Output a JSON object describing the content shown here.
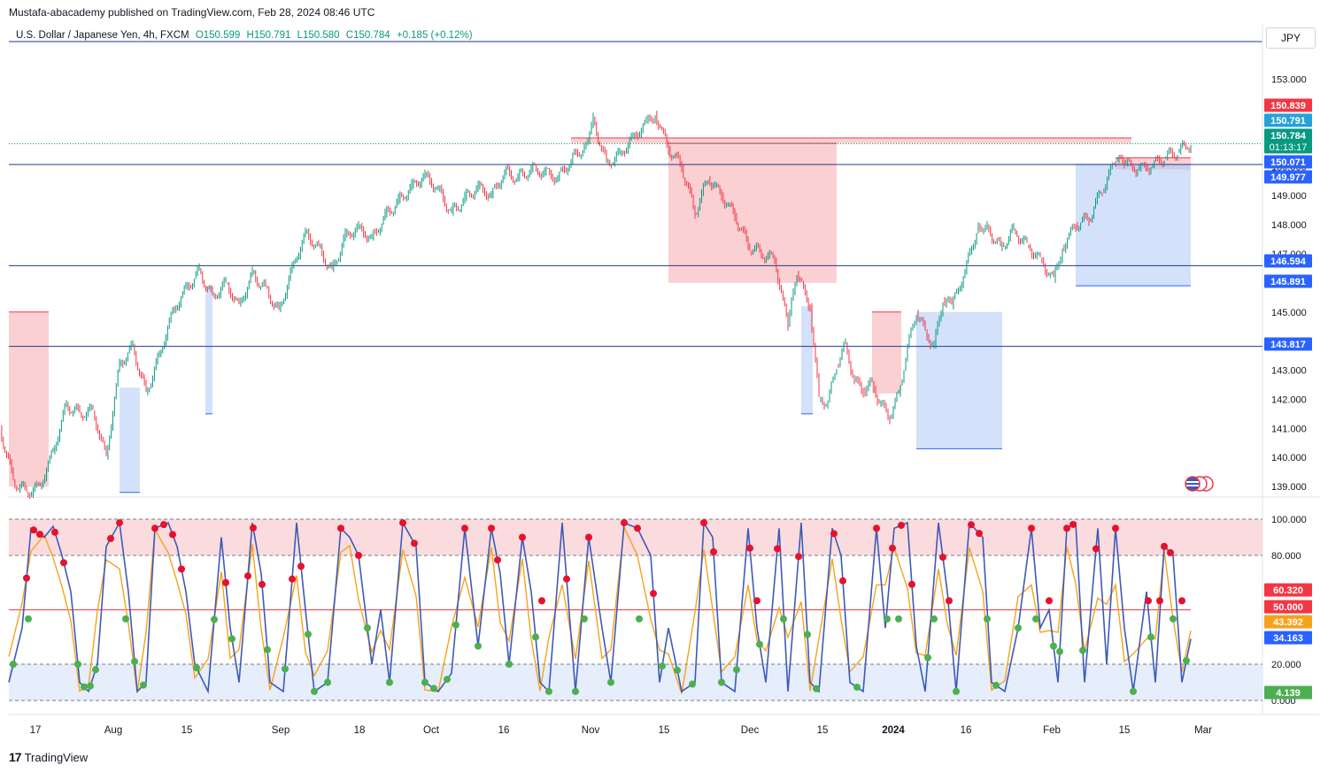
{
  "header": {
    "published_by": "Mustafa-abacademy published on TradingView.com, Feb 28, 2024 08:46 UTC",
    "symbol": "U.S. Dollar / Japanese Yen, 4h, FXCM",
    "open": "O150.599",
    "high": "H150.791",
    "low": "L150.580",
    "close": "C150.784",
    "change": "+0.185 (+0.12%)",
    "currency": "JPY"
  },
  "footer": {
    "logo_mark": "17",
    "logo_text": "TradingView"
  },
  "colors": {
    "supply_zone": "#f7a9ae",
    "demand_zone": "#aec8f5",
    "candle_up": "#089981",
    "candle_down": "#f23645",
    "stoch_k": "#3d5ab8",
    "stoch_d": "#f7a21b",
    "overbought_fill": "#fadcde",
    "oversold_fill": "#e6edfb"
  },
  "chart_data": [
    {
      "type": "line",
      "description_of_series": "USDJPY 4h close path (approximate)",
      "price_axis": [
        "153.000",
        "152.000",
        "151.000",
        "150.000",
        "149.000",
        "148.000",
        "147.000",
        "146.000",
        "145.000",
        "144.000",
        "143.000",
        "142.000",
        "141.000",
        "140.000",
        "139.000"
      ],
      "ylim": [
        138.7,
        153.9
      ],
      "time_axis": [
        "17",
        "Aug",
        "15",
        "Sep",
        "18",
        "Oct",
        "16",
        "Nov",
        "15",
        "Dec",
        "15",
        "2024",
        "16",
        "Feb",
        "15",
        "Mar"
      ],
      "price_points": [
        [
          0,
          141.0
        ],
        [
          15,
          139.2
        ],
        [
          30,
          138.8
        ],
        [
          45,
          139.0
        ],
        [
          60,
          140.2
        ],
        [
          75,
          141.8
        ],
        [
          90,
          141.5
        ],
        [
          105,
          141.6
        ],
        [
          120,
          140.0
        ],
        [
          135,
          143.2
        ],
        [
          150,
          143.8
        ],
        [
          165,
          142.2
        ],
        [
          180,
          143.5
        ],
        [
          195,
          145.0
        ],
        [
          210,
          145.8
        ],
        [
          225,
          146.4
        ],
        [
          240,
          145.5
        ],
        [
          255,
          146.0
        ],
        [
          270,
          145.2
        ],
        [
          285,
          146.3
        ],
        [
          300,
          145.8
        ],
        [
          315,
          145.0
        ],
        [
          330,
          146.5
        ],
        [
          345,
          147.7
        ],
        [
          360,
          147.2
        ],
        [
          375,
          146.4
        ],
        [
          390,
          147.6
        ],
        [
          405,
          147.9
        ],
        [
          420,
          147.5
        ],
        [
          435,
          148.3
        ],
        [
          450,
          148.8
        ],
        [
          465,
          149.3
        ],
        [
          480,
          149.7
        ],
        [
          495,
          149.2
        ],
        [
          510,
          148.4
        ],
        [
          525,
          148.9
        ],
        [
          540,
          149.3
        ],
        [
          555,
          149.0
        ],
        [
          570,
          149.8
        ],
        [
          585,
          149.6
        ],
        [
          600,
          149.9
        ],
        [
          615,
          149.8
        ],
        [
          630,
          149.6
        ],
        [
          645,
          150.2
        ],
        [
          660,
          150.7
        ],
        [
          670,
          151.6
        ],
        [
          685,
          150.1
        ],
        [
          700,
          150.4
        ],
        [
          715,
          151.0
        ],
        [
          730,
          151.5
        ],
        [
          740,
          151.8
        ],
        [
          755,
          150.6
        ],
        [
          770,
          150.0
        ],
        [
          785,
          148.4
        ],
        [
          800,
          149.6
        ],
        [
          815,
          149.0
        ],
        [
          830,
          148.3
        ],
        [
          845,
          147.3
        ],
        [
          860,
          147.0
        ],
        [
          875,
          146.8
        ],
        [
          890,
          144.5
        ],
        [
          900,
          146.3
        ],
        [
          915,
          145.2
        ],
        [
          925,
          142.0
        ],
        [
          935,
          141.9
        ],
        [
          945,
          143.2
        ],
        [
          955,
          143.9
        ],
        [
          965,
          142.6
        ],
        [
          975,
          142.3
        ],
        [
          985,
          142.5
        ],
        [
          995,
          141.8
        ],
        [
          1005,
          141.4
        ],
        [
          1015,
          142.2
        ],
        [
          1025,
          143.8
        ],
        [
          1035,
          145.0
        ],
        [
          1045,
          144.3
        ],
        [
          1055,
          143.8
        ],
        [
          1065,
          145.4
        ],
        [
          1075,
          145.2
        ],
        [
          1090,
          146.4
        ],
        [
          1105,
          148.0
        ],
        [
          1115,
          147.9
        ],
        [
          1130,
          147.2
        ],
        [
          1145,
          147.8
        ],
        [
          1160,
          147.3
        ],
        [
          1175,
          146.8
        ],
        [
          1190,
          146.1
        ],
        [
          1200,
          147.2
        ],
        [
          1215,
          148.0
        ],
        [
          1230,
          148.2
        ],
        [
          1245,
          149.2
        ],
        [
          1260,
          150.2
        ],
        [
          1270,
          150.1
        ],
        [
          1285,
          149.9
        ],
        [
          1300,
          150.0
        ],
        [
          1315,
          150.3
        ],
        [
          1330,
          150.5
        ],
        [
          1345,
          150.784
        ]
      ],
      "supply_zones": [
        {
          "from_x": 10,
          "to_x": 55,
          "top": 145.0,
          "bottom": 139.0
        },
        {
          "from_x": 645,
          "to_x": 1278,
          "top": 150.98,
          "bottom": 150.8
        },
        {
          "from_x": 755,
          "to_x": 945,
          "top": 150.8,
          "bottom": 146.0
        },
        {
          "from_x": 985,
          "to_x": 1018,
          "top": 145.0,
          "bottom": 142.2
        },
        {
          "from_x": 1260,
          "to_x": 1345,
          "top": 150.3,
          "bottom": 149.9
        }
      ],
      "demand_zones": [
        {
          "from_x": 135,
          "to_x": 158,
          "top": 142.4,
          "bottom": 138.8
        },
        {
          "from_x": 232,
          "to_x": 240,
          "top": 145.9,
          "bottom": 141.5
        },
        {
          "from_x": 1035,
          "to_x": 1132,
          "top": 145.0,
          "bottom": 140.3
        },
        {
          "from_x": 1215,
          "to_x": 1345,
          "top": 150.1,
          "bottom": 145.9
        },
        {
          "from_x": 905,
          "to_x": 918,
          "top": 145.2,
          "bottom": 141.5
        }
      ],
      "horizontal_levels": [
        {
          "price": 150.071,
          "label": "150.071",
          "color": "#2962ff"
        },
        {
          "price": 146.594,
          "label": "146.594",
          "color": "#2962ff"
        },
        {
          "price": 143.817,
          "label": "143.817",
          "color": "#2962ff"
        }
      ],
      "price_tags": [
        {
          "price": 150.839,
          "label": "150.839",
          "bg": "#f23645",
          "color": "#ffffff"
        },
        {
          "price": 150.791,
          "label": "150.791",
          "bg": "#26a2d8",
          "color": "#ffffff"
        },
        {
          "price": 150.784,
          "label": "150.784",
          "sub": "01:13:17",
          "bg": "#089981",
          "color": "#ffffff"
        },
        {
          "price": 150.071,
          "label": "150.071",
          "bg": "#2962ff",
          "color": "#ffffff"
        },
        {
          "price": 149.977,
          "label": "149.977",
          "bg": "#2962ff",
          "color": "#ffffff"
        },
        {
          "price": 146.594,
          "label": "146.594",
          "bg": "#2962ff",
          "color": "#ffffff"
        },
        {
          "price": 145.891,
          "label": "145.891",
          "bg": "#2962ff",
          "color": "#ffffff"
        },
        {
          "price": 143.817,
          "label": "143.817",
          "bg": "#2962ff",
          "color": "#ffffff"
        }
      ]
    },
    {
      "type": "line",
      "description_of_series": "Stochastic oscillator %K / %D",
      "axis_labels": [
        "100.000",
        "80.000",
        "20.000",
        "0.000"
      ],
      "ylim": [
        0,
        100
      ],
      "levels": {
        "overbought": 80,
        "mid": 50,
        "oversold": 20
      },
      "value_tags": [
        {
          "value": 60.32,
          "label": "60.320",
          "bg": "#f23645"
        },
        {
          "value": 50.0,
          "label": "50.000",
          "bg": "#f23645"
        },
        {
          "value": 43.392,
          "label": "43.392",
          "bg": "#f7a21b"
        },
        {
          "value": 34.163,
          "label": "34.163",
          "bg": "#2962ff"
        },
        {
          "value": 4.139,
          "label": "4.139",
          "bg": "#4caf50"
        }
      ],
      "k_points": [
        [
          10,
          10
        ],
        [
          25,
          40
        ],
        [
          35,
          95
        ],
        [
          50,
          90
        ],
        [
          60,
          96
        ],
        [
          70,
          80
        ],
        [
          80,
          60
        ],
        [
          90,
          10
        ],
        [
          100,
          5
        ],
        [
          110,
          20
        ],
        [
          120,
          85
        ],
        [
          135,
          98
        ],
        [
          145,
          60
        ],
        [
          155,
          5
        ],
        [
          165,
          10
        ],
        [
          175,
          95
        ],
        [
          190,
          98
        ],
        [
          200,
          85
        ],
        [
          210,
          60
        ],
        [
          220,
          20
        ],
        [
          235,
          5
        ],
        [
          250,
          90
        ],
        [
          260,
          40
        ],
        [
          270,
          10
        ],
        [
          285,
          98
        ],
        [
          295,
          70
        ],
        [
          305,
          10
        ],
        [
          320,
          5
        ],
        [
          335,
          98
        ],
        [
          345,
          50
        ],
        [
          355,
          5
        ],
        [
          370,
          10
        ],
        [
          385,
          95
        ],
        [
          395,
          90
        ],
        [
          405,
          80
        ],
        [
          420,
          20
        ],
        [
          430,
          50
        ],
        [
          440,
          10
        ],
        [
          455,
          98
        ],
        [
          470,
          85
        ],
        [
          480,
          10
        ],
        [
          495,
          5
        ],
        [
          510,
          15
        ],
        [
          525,
          95
        ],
        [
          540,
          30
        ],
        [
          555,
          95
        ],
        [
          565,
          70
        ],
        [
          575,
          20
        ],
        [
          590,
          90
        ],
        [
          600,
          60
        ],
        [
          610,
          10
        ],
        [
          620,
          5
        ],
        [
          635,
          98
        ],
        [
          650,
          5
        ],
        [
          665,
          90
        ],
        [
          680,
          40
        ],
        [
          690,
          10
        ],
        [
          705,
          98
        ],
        [
          720,
          95
        ],
        [
          735,
          80
        ],
        [
          745,
          10
        ],
        [
          755,
          40
        ],
        [
          770,
          5
        ],
        [
          785,
          10
        ],
        [
          795,
          98
        ],
        [
          805,
          90
        ],
        [
          815,
          10
        ],
        [
          830,
          5
        ],
        [
          845,
          95
        ],
        [
          855,
          40
        ],
        [
          865,
          10
        ],
        [
          880,
          95
        ],
        [
          890,
          5
        ],
        [
          905,
          98
        ],
        [
          915,
          10
        ],
        [
          925,
          5
        ],
        [
          940,
          95
        ],
        [
          950,
          80
        ],
        [
          960,
          10
        ],
        [
          975,
          5
        ],
        [
          990,
          95
        ],
        [
          1000,
          40
        ],
        [
          1010,
          95
        ],
        [
          1025,
          98
        ],
        [
          1035,
          30
        ],
        [
          1045,
          5
        ],
        [
          1060,
          98
        ],
        [
          1070,
          60
        ],
        [
          1080,
          5
        ],
        [
          1095,
          98
        ],
        [
          1110,
          90
        ],
        [
          1120,
          10
        ],
        [
          1135,
          5
        ],
        [
          1150,
          40
        ],
        [
          1165,
          95
        ],
        [
          1175,
          40
        ],
        [
          1185,
          50
        ],
        [
          1195,
          10
        ],
        [
          1205,
          95
        ],
        [
          1215,
          98
        ],
        [
          1225,
          10
        ],
        [
          1240,
          95
        ],
        [
          1250,
          20
        ],
        [
          1260,
          95
        ],
        [
          1270,
          40
        ],
        [
          1280,
          5
        ],
        [
          1295,
          60
        ],
        [
          1305,
          10
        ],
        [
          1315,
          85
        ],
        [
          1325,
          80
        ],
        [
          1335,
          10
        ],
        [
          1345,
          34
        ]
      ],
      "overbought_markers_x": [
        30,
        38,
        45,
        62,
        72,
        125,
        135,
        175,
        185,
        195,
        205,
        255,
        280,
        286,
        296,
        330,
        340,
        385,
        405,
        455,
        468,
        525,
        555,
        562,
        590,
        612,
        640,
        665,
        705,
        720,
        738,
        795,
        806,
        847,
        855,
        878,
        902,
        942,
        952,
        990,
        1008,
        1018,
        1030,
        1065,
        1072,
        1097,
        1106,
        1165,
        1185,
        1205,
        1212,
        1238,
        1260,
        1297,
        1310,
        1315,
        1322,
        1335
      ],
      "oversold_markers_x": [
        15,
        32,
        88,
        95,
        102,
        108,
        142,
        152,
        162,
        222,
        242,
        262,
        302,
        322,
        348,
        355,
        370,
        415,
        440,
        480,
        490,
        505,
        515,
        540,
        575,
        605,
        620,
        650,
        660,
        690,
        722,
        748,
        765,
        782,
        815,
        832,
        858,
        885,
        912,
        922,
        968,
        1002,
        1015,
        1048,
        1055,
        1080,
        1115,
        1125,
        1150,
        1170,
        1190,
        1197,
        1223,
        1280,
        1300,
        1325,
        1340
      ]
    }
  ]
}
